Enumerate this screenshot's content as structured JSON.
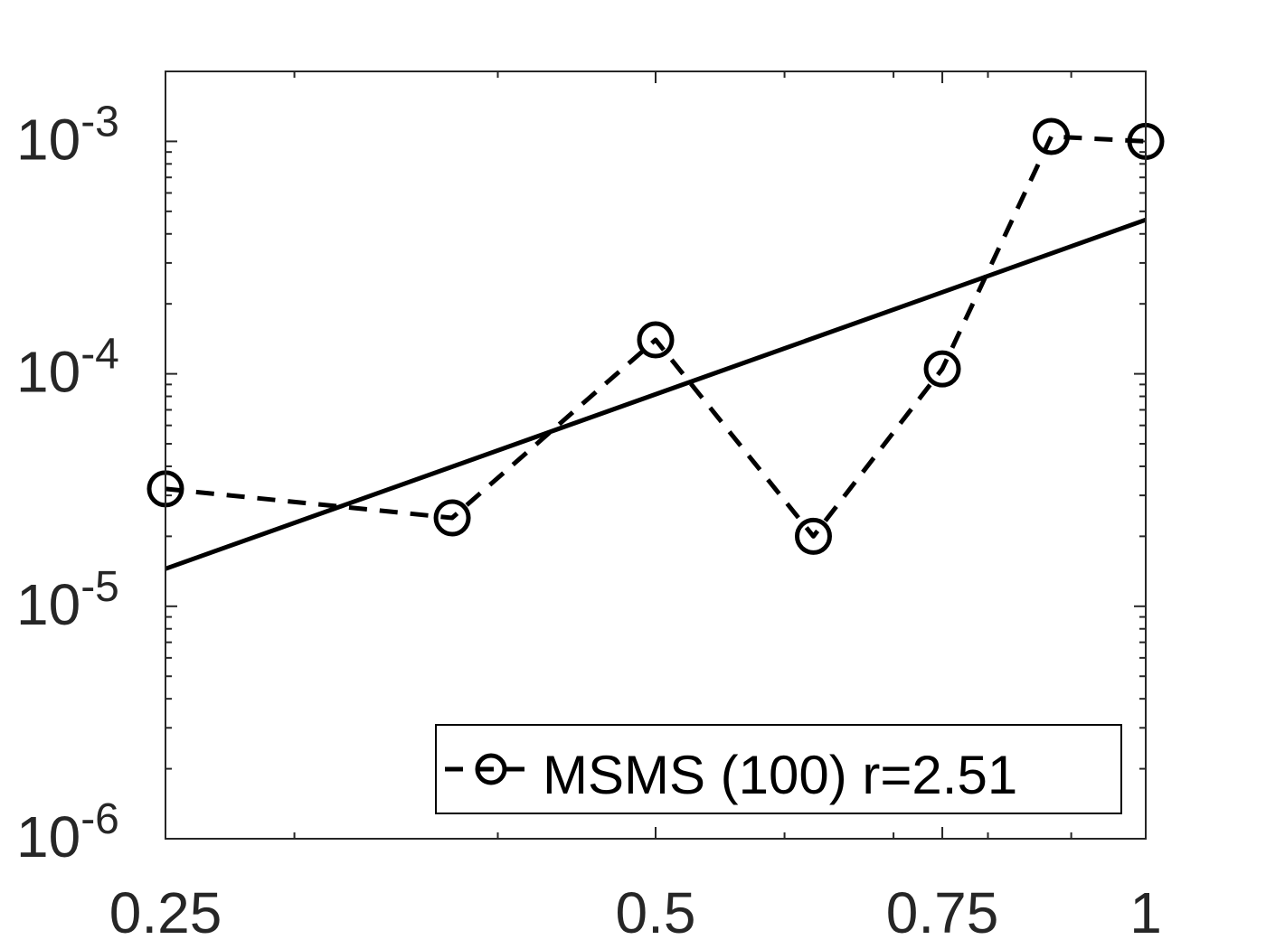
{
  "chart_data": {
    "type": "line",
    "x_scale": "log",
    "y_scale": "log",
    "xlim": [
      0.25,
      1
    ],
    "ylim": [
      1e-06,
      0.002
    ],
    "x_ticks": [
      {
        "value": 0.25,
        "label": "0.25"
      },
      {
        "value": 0.5,
        "label": "0.5"
      },
      {
        "value": 0.75,
        "label": "0.75"
      },
      {
        "value": 1,
        "label": "1"
      }
    ],
    "y_ticks": [
      {
        "value": 1e-06,
        "base": "10",
        "exp": "-6"
      },
      {
        "value": 1e-05,
        "base": "10",
        "exp": "-5"
      },
      {
        "value": 0.0001,
        "base": "10",
        "exp": "-4"
      },
      {
        "value": 0.001,
        "base": "10",
        "exp": "-3"
      }
    ],
    "series": [
      {
        "name": "MSMS (100) r=2.51",
        "style": "dashed",
        "marker": "circle",
        "color": "#000000",
        "x": [
          0.25,
          0.375,
          0.5,
          0.625,
          0.75,
          0.875,
          1.0
        ],
        "y": [
          3.2e-05,
          2.4e-05,
          0.00014,
          2e-05,
          0.000105,
          0.00105,
          0.001
        ]
      },
      {
        "style": "solid",
        "color": "#000000",
        "x": [
          0.25,
          1.0
        ],
        "y": [
          1.45e-05,
          0.00046
        ]
      }
    ],
    "legend": {
      "position": "bottom-right",
      "entries": [
        "MSMS (100) r=2.51"
      ]
    },
    "grid": false
  }
}
